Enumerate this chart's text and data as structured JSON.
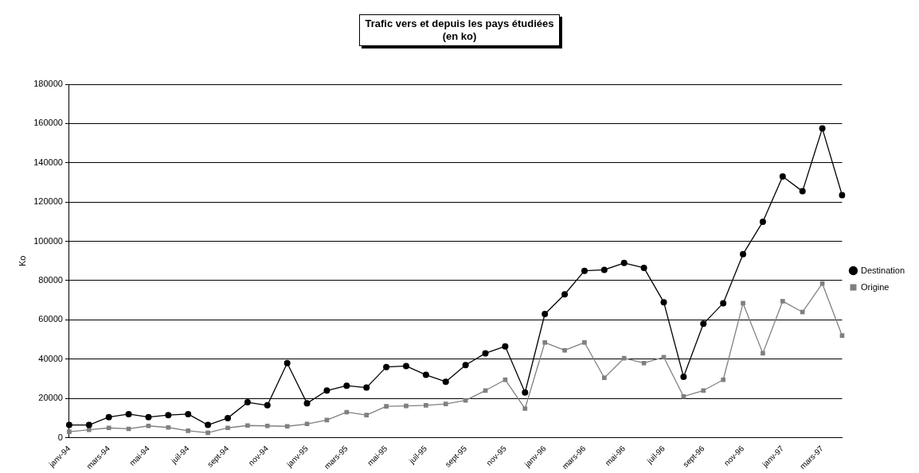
{
  "chart_data": {
    "type": "line",
    "title": "Trafic vers et depuis les pays étudiées\n(en ko)",
    "ylabel": "Ko",
    "categories": [
      "janv-94",
      null,
      "mars-94",
      null,
      "mai-94",
      null,
      "juil-94",
      null,
      "sept-94",
      null,
      "nov-94",
      null,
      "janv-95",
      null,
      "mars-95",
      null,
      "mai-95",
      null,
      "juil-95",
      null,
      "sept-95",
      null,
      "nov-95",
      null,
      "janv-96",
      null,
      "mars-96",
      null,
      "mai-96",
      null,
      "juil-96",
      null,
      "sept-96",
      null,
      "nov-96",
      null,
      "janv-97",
      null,
      "mars-97",
      null
    ],
    "series": [
      {
        "name": "Destination",
        "color": "#000000",
        "marker": "circle",
        "values": [
          6500,
          6500,
          10500,
          12000,
          10500,
          11500,
          12000,
          6500,
          10000,
          18000,
          16500,
          38000,
          17500,
          24000,
          26500,
          25500,
          36000,
          36500,
          32000,
          28500,
          37000,
          43000,
          46500,
          23000,
          63000,
          73000,
          85000,
          85500,
          89000,
          86500,
          69000,
          31000,
          58000,
          68500,
          93500,
          110000,
          133000,
          125500,
          157500,
          123500
        ]
      },
      {
        "name": "Origine",
        "color": "#808080",
        "marker": "square",
        "values": [
          3000,
          4000,
          5000,
          4500,
          6000,
          5200,
          3500,
          2500,
          5000,
          6200,
          6000,
          5800,
          7000,
          9000,
          13000,
          11500,
          16000,
          16200,
          16500,
          17200,
          19000,
          24000,
          29500,
          14800,
          48500,
          44500,
          48500,
          30500,
          40500,
          38000,
          41000,
          21000,
          24000,
          29500,
          68500,
          43000,
          69500,
          64000,
          78500,
          52000
        ]
      }
    ],
    "ylim": [
      0,
      180000
    ],
    "yticks": [
      0,
      20000,
      40000,
      60000,
      80000,
      100000,
      120000,
      140000,
      160000,
      180000
    ],
    "grid": "y",
    "legend": "right",
    "line_style": "solid"
  }
}
